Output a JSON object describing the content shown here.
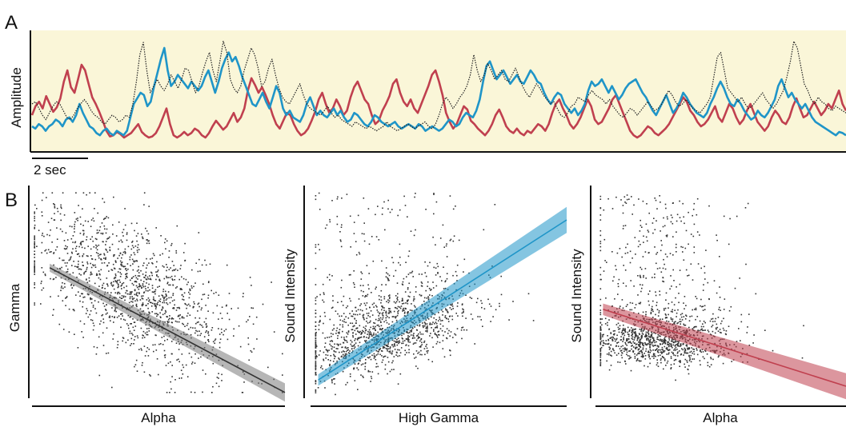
{
  "panels": {
    "a_label": "A",
    "b_label": "B"
  },
  "chart_data": [
    {
      "type": "line",
      "panel": "A",
      "ylabel": "Amplitude",
      "scale_bar_label": "2 sec",
      "background_color": "#faf6d8",
      "grid": false,
      "series": [
        {
          "color": "#c0404f",
          "style": "solid",
          "values": [
            0.3,
            0.38,
            0.42,
            0.36,
            0.47,
            0.4,
            0.33,
            0.37,
            0.45,
            0.6,
            0.7,
            0.55,
            0.5,
            0.62,
            0.75,
            0.7,
            0.58,
            0.46,
            0.4,
            0.33,
            0.25,
            0.16,
            0.11,
            0.12,
            0.15,
            0.13,
            0.1,
            0.12,
            0.14,
            0.18,
            0.22,
            0.15,
            0.12,
            0.1,
            0.11,
            0.14,
            0.2,
            0.28,
            0.36,
            0.22,
            0.12,
            0.1,
            0.12,
            0.15,
            0.12,
            0.14,
            0.18,
            0.16,
            0.12,
            0.1,
            0.14,
            0.2,
            0.25,
            0.21,
            0.17,
            0.2,
            0.26,
            0.32,
            0.24,
            0.28,
            0.36,
            0.52,
            0.63,
            0.57,
            0.5,
            0.55,
            0.48,
            0.4,
            0.3,
            0.22,
            0.18,
            0.25,
            0.32,
            0.3,
            0.22,
            0.16,
            0.12,
            0.14,
            0.18,
            0.25,
            0.33,
            0.44,
            0.5,
            0.4,
            0.32,
            0.36,
            0.44,
            0.38,
            0.3,
            0.34,
            0.46,
            0.55,
            0.6,
            0.52,
            0.44,
            0.4,
            0.3,
            0.22,
            0.25,
            0.34,
            0.4,
            0.47,
            0.58,
            0.62,
            0.5,
            0.42,
            0.38,
            0.44,
            0.36,
            0.32,
            0.4,
            0.48,
            0.56,
            0.66,
            0.7,
            0.6,
            0.48,
            0.32,
            0.24,
            0.18,
            0.22,
            0.3,
            0.38,
            0.35,
            0.25,
            0.22,
            0.18,
            0.15,
            0.12,
            0.16,
            0.22,
            0.3,
            0.35,
            0.28,
            0.2,
            0.16,
            0.14,
            0.18,
            0.14,
            0.12,
            0.16,
            0.14,
            0.18,
            0.22,
            0.2,
            0.16,
            0.22,
            0.32,
            0.4,
            0.44,
            0.36,
            0.3,
            0.22,
            0.18,
            0.22,
            0.28,
            0.36,
            0.44,
            0.38,
            0.26,
            0.22,
            0.24,
            0.3,
            0.36,
            0.44,
            0.48,
            0.4,
            0.32,
            0.24,
            0.16,
            0.12,
            0.1,
            0.12,
            0.16,
            0.2,
            0.18,
            0.14,
            0.12,
            0.15,
            0.18,
            0.22,
            0.28,
            0.34,
            0.4,
            0.46,
            0.42,
            0.34,
            0.3,
            0.24,
            0.2,
            0.22,
            0.26,
            0.32,
            0.38,
            0.28,
            0.24,
            0.32,
            0.4,
            0.36,
            0.28,
            0.22,
            0.26,
            0.34,
            0.4,
            0.32,
            0.24,
            0.2,
            0.16,
            0.2,
            0.28,
            0.34,
            0.3,
            0.24,
            0.22,
            0.28,
            0.38,
            0.45,
            0.36,
            0.28,
            0.3,
            0.36,
            0.42,
            0.36,
            0.3,
            0.34,
            0.4,
            0.36,
            0.44,
            0.52,
            0.4,
            0.34
          ]
        },
        {
          "color": "#1f95c8",
          "style": "solid",
          "values": [
            0.2,
            0.18,
            0.22,
            0.2,
            0.16,
            0.2,
            0.22,
            0.26,
            0.24,
            0.2,
            0.26,
            0.28,
            0.24,
            0.3,
            0.4,
            0.32,
            0.26,
            0.2,
            0.18,
            0.14,
            0.12,
            0.16,
            0.18,
            0.14,
            0.12,
            0.16,
            0.14,
            0.12,
            0.16,
            0.28,
            0.4,
            0.45,
            0.5,
            0.48,
            0.38,
            0.42,
            0.56,
            0.68,
            0.8,
            0.9,
            0.7,
            0.56,
            0.6,
            0.66,
            0.62,
            0.58,
            0.54,
            0.6,
            0.56,
            0.52,
            0.56,
            0.64,
            0.7,
            0.6,
            0.5,
            0.6,
            0.72,
            0.8,
            0.86,
            0.78,
            0.82,
            0.74,
            0.64,
            0.56,
            0.48,
            0.4,
            0.38,
            0.44,
            0.5,
            0.42,
            0.36,
            0.46,
            0.56,
            0.5,
            0.36,
            0.3,
            0.34,
            0.28,
            0.26,
            0.24,
            0.3,
            0.4,
            0.46,
            0.38,
            0.3,
            0.34,
            0.3,
            0.28,
            0.32,
            0.36,
            0.3,
            0.34,
            0.28,
            0.24,
            0.26,
            0.32,
            0.3,
            0.26,
            0.22,
            0.2,
            0.24,
            0.3,
            0.28,
            0.24,
            0.22,
            0.2,
            0.22,
            0.24,
            0.2,
            0.18,
            0.2,
            0.22,
            0.2,
            0.18,
            0.22,
            0.2,
            0.16,
            0.18,
            0.2,
            0.18,
            0.16,
            0.18,
            0.22,
            0.26,
            0.24,
            0.2,
            0.22,
            0.28,
            0.32,
            0.3,
            0.28,
            0.34,
            0.44,
            0.6,
            0.74,
            0.78,
            0.7,
            0.62,
            0.66,
            0.7,
            0.64,
            0.58,
            0.62,
            0.66,
            0.6,
            0.58,
            0.64,
            0.7,
            0.66,
            0.6,
            0.58,
            0.5,
            0.44,
            0.4,
            0.46,
            0.5,
            0.48,
            0.4,
            0.36,
            0.32,
            0.36,
            0.3,
            0.34,
            0.4,
            0.52,
            0.6,
            0.56,
            0.58,
            0.62,
            0.56,
            0.5,
            0.56,
            0.5,
            0.44,
            0.48,
            0.54,
            0.58,
            0.6,
            0.62,
            0.56,
            0.5,
            0.46,
            0.4,
            0.34,
            0.3,
            0.36,
            0.42,
            0.48,
            0.4,
            0.32,
            0.36,
            0.42,
            0.5,
            0.46,
            0.4,
            0.36,
            0.32,
            0.3,
            0.28,
            0.32,
            0.4,
            0.46,
            0.54,
            0.6,
            0.54,
            0.46,
            0.4,
            0.38,
            0.44,
            0.4,
            0.34,
            0.3,
            0.26,
            0.28,
            0.34,
            0.3,
            0.28,
            0.32,
            0.38,
            0.44,
            0.56,
            0.62,
            0.54,
            0.46,
            0.5,
            0.44,
            0.4,
            0.36,
            0.4,
            0.34,
            0.28,
            0.24,
            0.22,
            0.2,
            0.18,
            0.16,
            0.14,
            0.12,
            0.15,
            0.14,
            0.12
          ]
        },
        {
          "color": "#222222",
          "style": "dotted",
          "values": [
            0.4,
            0.42,
            0.36,
            0.3,
            0.26,
            0.32,
            0.38,
            0.42,
            0.4,
            0.34,
            0.28,
            0.26,
            0.3,
            0.36,
            0.4,
            0.44,
            0.4,
            0.34,
            0.3,
            0.28,
            0.24,
            0.22,
            0.26,
            0.3,
            0.28,
            0.24,
            0.26,
            0.3,
            0.28,
            0.4,
            0.6,
            0.84,
            0.95,
            0.7,
            0.5,
            0.56,
            0.62,
            0.56,
            0.52,
            0.58,
            0.66,
            0.6,
            0.54,
            0.62,
            0.72,
            0.7,
            0.6,
            0.5,
            0.56,
            0.68,
            0.78,
            0.86,
            0.7,
            0.6,
            0.78,
            0.96,
            0.86,
            0.62,
            0.54,
            0.5,
            0.56,
            0.7,
            0.8,
            0.9,
            0.84,
            0.72,
            0.56,
            0.6,
            0.72,
            0.8,
            0.66,
            0.54,
            0.46,
            0.42,
            0.4,
            0.46,
            0.52,
            0.58,
            0.48,
            0.4,
            0.36,
            0.34,
            0.32,
            0.3,
            0.34,
            0.38,
            0.32,
            0.28,
            0.3,
            0.26,
            0.24,
            0.22,
            0.2,
            0.24,
            0.22,
            0.2,
            0.18,
            0.2,
            0.18,
            0.16,
            0.18,
            0.2,
            0.24,
            0.2,
            0.18,
            0.16,
            0.18,
            0.2,
            0.22,
            0.2,
            0.18,
            0.2,
            0.22,
            0.24,
            0.2,
            0.18,
            0.22,
            0.3,
            0.4,
            0.46,
            0.42,
            0.36,
            0.4,
            0.46,
            0.5,
            0.56,
            0.66,
            0.84,
            0.7,
            0.6,
            0.66,
            0.76,
            0.7,
            0.62,
            0.66,
            0.7,
            0.62,
            0.6,
            0.66,
            0.72,
            0.64,
            0.56,
            0.5,
            0.46,
            0.52,
            0.58,
            0.54,
            0.48,
            0.44,
            0.4,
            0.42,
            0.36,
            0.3,
            0.28,
            0.32,
            0.38,
            0.4,
            0.46,
            0.44,
            0.42,
            0.48,
            0.52,
            0.48,
            0.46,
            0.44,
            0.4,
            0.44,
            0.38,
            0.34,
            0.3,
            0.28,
            0.32,
            0.36,
            0.34,
            0.3,
            0.34,
            0.38,
            0.42,
            0.38,
            0.34,
            0.36,
            0.4,
            0.46,
            0.52,
            0.48,
            0.42,
            0.38,
            0.4,
            0.44,
            0.4,
            0.36,
            0.34,
            0.32,
            0.36,
            0.4,
            0.46,
            0.64,
            0.82,
            0.86,
            0.7,
            0.54,
            0.5,
            0.46,
            0.42,
            0.46,
            0.4,
            0.36,
            0.38,
            0.42,
            0.46,
            0.5,
            0.44,
            0.4,
            0.36,
            0.4,
            0.46,
            0.52,
            0.64,
            0.78,
            0.96,
            0.9,
            0.74,
            0.58,
            0.52,
            0.44,
            0.4,
            0.46,
            0.42,
            0.4,
            0.36,
            0.34,
            0.38,
            0.36,
            0.34,
            0.32
          ]
        }
      ]
    },
    {
      "type": "scatter",
      "panel": "B1",
      "xlabel": "Alpha",
      "ylabel": "Gamma",
      "xlim": [
        0,
        1
      ],
      "ylim": [
        0,
        1
      ],
      "n_points": 1400,
      "point_color": "#333333",
      "fit_line": {
        "x": [
          0.07,
          1.0
        ],
        "y": [
          0.62,
          0.02
        ],
        "color": "#333333",
        "band_color": "#7a7a7a",
        "band_width": 0.035
      }
    },
    {
      "type": "scatter",
      "panel": "B2",
      "xlabel": "High Gamma",
      "ylabel": "Sound Intensity",
      "xlim": [
        0,
        1
      ],
      "ylim": [
        0,
        1
      ],
      "n_points": 1400,
      "point_color": "#333333",
      "fit_line": {
        "x": [
          0.03,
          1.0
        ],
        "y": [
          0.08,
          0.85
        ],
        "color": "#1f95c8",
        "band_color": "#1f95c8",
        "band_width": 0.05
      }
    },
    {
      "type": "scatter",
      "panel": "B3",
      "xlabel": "Alpha",
      "ylabel": "Sound Intensity",
      "xlim": [
        0,
        1
      ],
      "ylim": [
        0,
        1
      ],
      "n_points": 1400,
      "point_color": "#333333",
      "fit_line": {
        "x": [
          0.03,
          1.0
        ],
        "y": [
          0.42,
          0.05
        ],
        "color": "#c0404f",
        "band_color": "#c0404f",
        "band_width": 0.05
      }
    }
  ]
}
